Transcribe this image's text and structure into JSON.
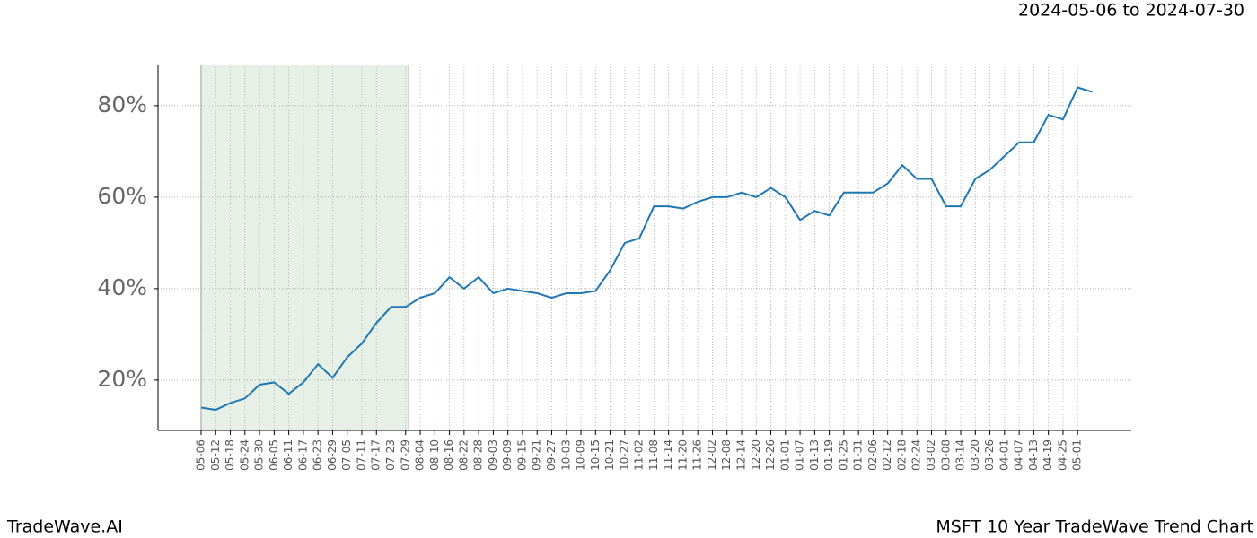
{
  "chart_data": {
    "type": "line",
    "title": "2024-05-06 to 2024-07-30",
    "footer_left": "TradeWave.AI",
    "footer_right": "MSFT 10 Year TradeWave Trend Chart",
    "categories": [
      "05-06",
      "05-12",
      "05-18",
      "05-24",
      "05-30",
      "06-05",
      "06-11",
      "06-17",
      "06-23",
      "06-29",
      "07-05",
      "07-11",
      "07-17",
      "07-23",
      "07-29",
      "08-04",
      "08-10",
      "08-16",
      "08-22",
      "08-28",
      "09-03",
      "09-09",
      "09-15",
      "09-21",
      "09-27",
      "10-03",
      "10-09",
      "10-15",
      "10-21",
      "10-27",
      "11-02",
      "11-08",
      "11-14",
      "11-20",
      "11-26",
      "12-02",
      "12-08",
      "12-14",
      "12-20",
      "12-26",
      "01-01",
      "01-07",
      "01-13",
      "01-19",
      "01-25",
      "01-31",
      "02-06",
      "02-12",
      "02-18",
      "02-24",
      "03-02",
      "03-08",
      "03-14",
      "03-20",
      "03-26",
      "04-01",
      "04-07",
      "04-13",
      "04-19",
      "04-25",
      "05-01",
      null
    ],
    "series": [
      {
        "name": "MSFT",
        "color": "#1f77b4",
        "values": [
          14,
          13.5,
          15,
          16,
          19,
          19.5,
          17,
          19.5,
          23.5,
          20.5,
          25,
          28,
          32.5,
          36,
          36,
          38,
          39,
          42.5,
          40,
          42.5,
          39,
          40,
          39.5,
          39,
          38,
          39,
          39,
          39.5,
          44,
          50,
          51,
          58,
          58,
          57.5,
          59,
          60,
          60,
          61,
          60,
          62,
          60,
          55,
          57,
          56,
          61,
          61,
          61,
          63,
          67,
          64,
          64,
          58,
          58,
          64,
          66,
          69,
          72,
          72,
          78,
          77,
          84,
          83
        ]
      }
    ],
    "ylim": [
      9,
      89
    ],
    "yticks": [
      {
        "value": 20,
        "label": "20%"
      },
      {
        "value": 40,
        "label": "40%"
      },
      {
        "value": 60,
        "label": "60%"
      },
      {
        "value": 80,
        "label": "80%"
      }
    ],
    "grid": true,
    "highlight_color": "#e6f0e6"
  }
}
